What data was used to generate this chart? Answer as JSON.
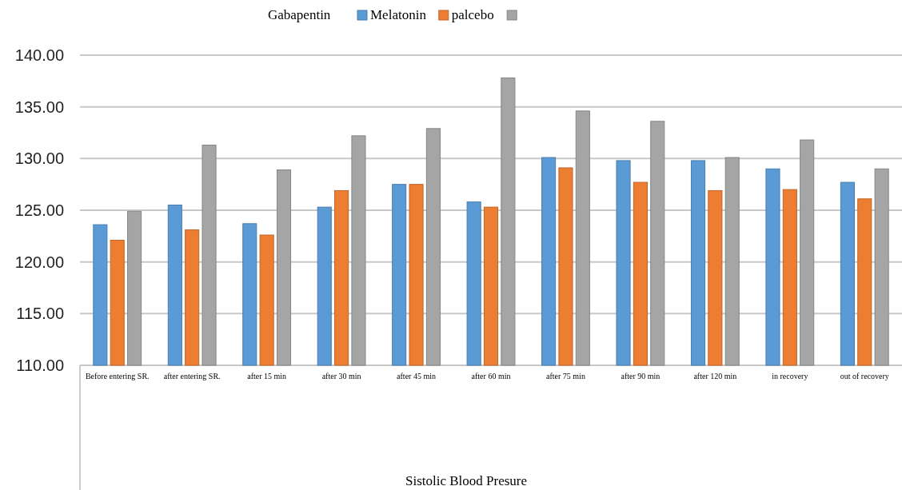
{
  "chart_data": {
    "type": "bar",
    "legend_title": "Gabapentin",
    "annotations": [
      "Sistolic Blood Presure"
    ],
    "categories": [
      "Before entering SR.",
      "after entering SR.",
      "after 15 min",
      "after 30 min",
      "after 45 min",
      "after 60 min",
      "after 75 min",
      "after 90 min",
      "after 120 min",
      "in recovery",
      "out of recovery"
    ],
    "series": [
      {
        "name": "Melatonin",
        "color": "#5b9bd5",
        "values": [
          123.6,
          125.5,
          123.7,
          125.3,
          127.5,
          125.8,
          130.1,
          129.8,
          129.8,
          129.0,
          127.7
        ]
      },
      {
        "name": "palcebo",
        "color": "#ed7d31",
        "values": [
          122.1,
          123.1,
          122.6,
          126.9,
          127.5,
          125.3,
          129.1,
          127.7,
          126.9,
          127.0,
          126.1
        ]
      },
      {
        "color": "#a5a5a5",
        "values": [
          124.9,
          131.3,
          128.9,
          132.2,
          132.9,
          137.8,
          134.6,
          133.6,
          130.1,
          131.8,
          129.0
        ]
      }
    ],
    "ylim": [
      110,
      140
    ],
    "yticks": [
      {
        "value": 110,
        "label": "110.00"
      },
      {
        "value": 115,
        "label": "115.00"
      },
      {
        "value": 120,
        "label": "120.00"
      },
      {
        "value": 125,
        "label": "125.00"
      },
      {
        "value": 130,
        "label": "130.00"
      },
      {
        "value": 135,
        "label": "135.00"
      },
      {
        "value": 140,
        "label": "140.00"
      }
    ],
    "grid": "y",
    "legend": "top"
  }
}
